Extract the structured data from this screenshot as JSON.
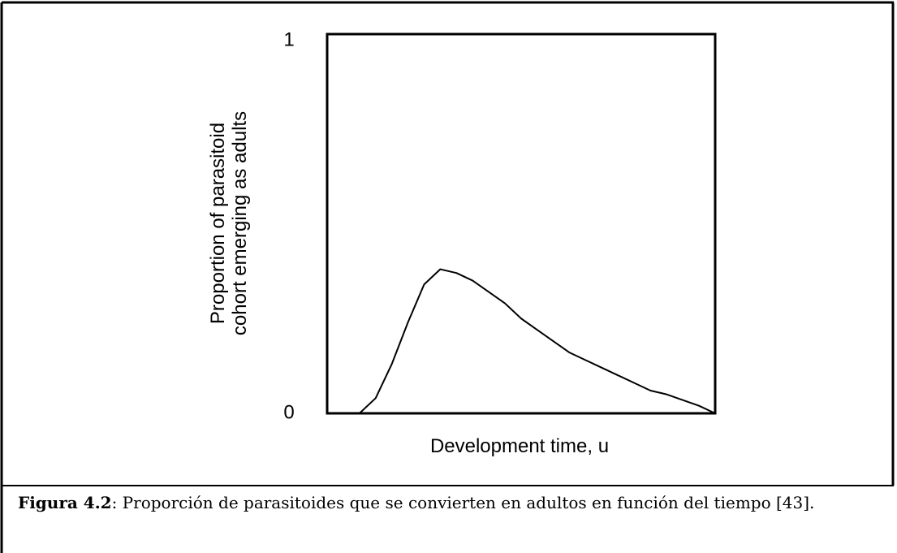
{
  "chart_data": {
    "type": "line",
    "ylabel": [
      "Proportion of parasitoid",
      "cohort emerging as adults"
    ],
    "xlabel": "Development time, u",
    "categories": [
      null,
      null,
      null,
      null,
      null,
      null,
      null,
      null,
      null,
      null,
      null,
      null,
      null,
      null,
      null,
      null,
      null,
      null,
      null,
      null,
      null,
      null,
      null,
      null,
      null
    ],
    "values": [
      null,
      null,
      0,
      0.04,
      0.13,
      0.24,
      0.34,
      0.38,
      0.37,
      0.35,
      0.32,
      0.29,
      0.25,
      0.22,
      0.19,
      0.16,
      0.14,
      0.12,
      0.1,
      0.08,
      0.06,
      0.05,
      0.035,
      0.02,
      0
    ],
    "color": "#000000",
    "ylim": [
      0,
      1
    ],
    "yticks": [
      0,
      1
    ],
    "grid": false
  },
  "caption": {
    "label": "Figura 4.2",
    "text": ": Proporción de parasitoides que se convierten en adultos en función del tiempo [43]."
  }
}
